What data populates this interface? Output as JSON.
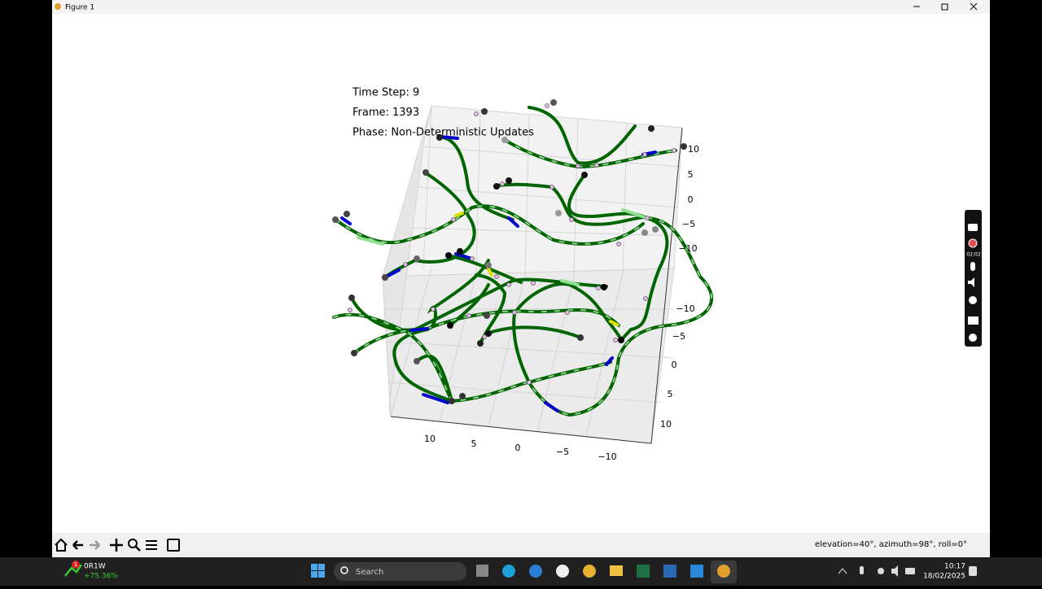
{
  "window": {
    "title": "Figure 1"
  },
  "plot": {
    "annotations": [
      "Time Step: 9",
      "Frame: 1393",
      "Phase: Non-Deterministic Updates"
    ],
    "axis_a_ticks": [
      "10",
      "5",
      "0",
      "−5",
      "−10"
    ],
    "axis_b_ticks": [
      "−10",
      "−5",
      "0",
      "5",
      "10"
    ],
    "axis_c_ticks": [
      "10",
      "5",
      "0",
      "−5",
      "−10"
    ]
  },
  "status": "elevation=40°, azimuth=98°, roll=0°",
  "recorder": {
    "time": "02:02"
  },
  "taskbar": {
    "badge": "1",
    "ticker": "0R1W",
    "change": "+75.36%",
    "search": "Search",
    "time": "10:17",
    "date": "18/02/2025"
  }
}
